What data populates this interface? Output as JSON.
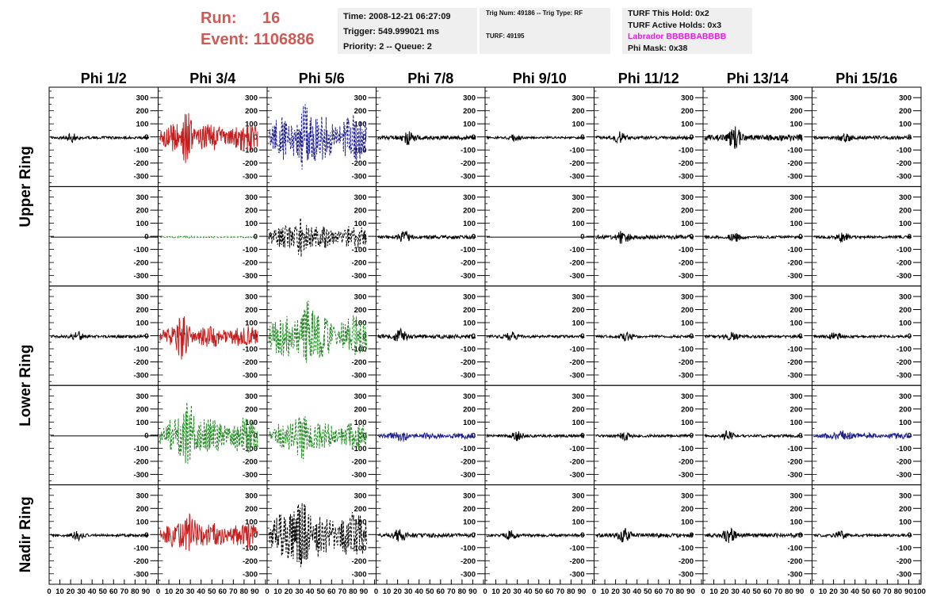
{
  "header": {
    "run_label": "Run:",
    "run_value": "16",
    "event_label": "Event:",
    "event_value": "1106886",
    "time": "Time: 2008-12-21 06:27:09",
    "trigger": "Trigger: 549.999021 ms",
    "priority": "Priority: 2 -- Queue: 2",
    "trig_num": "Trig Num: 49186 -- Trig Type: RF",
    "turf": "TURF: 49195",
    "turf_hold": "TURF This Hold: 0x2",
    "turf_active": "TURF Active Holds: 0x3",
    "labrador": "Labrador BBBBBABBBB",
    "phi_mask": "Phi Mask: 0x38"
  },
  "colors": {
    "run": "#cc5b56",
    "labrador": "#e41be4",
    "red": "#c42020",
    "blue": "#1f1f8f",
    "green": "#1e8a1e",
    "black": "#000000"
  },
  "chart_data": {
    "type": "line",
    "columns": [
      "Phi 1/2",
      "Phi 3/4",
      "Phi 5/6",
      "Phi 7/8",
      "Phi 9/10",
      "Phi 11/12",
      "Phi 13/14",
      "Phi 15/16"
    ],
    "ring_labels": [
      "Upper Ring",
      "Lower Ring",
      "Nadir Ring"
    ],
    "xlim": [
      0,
      100
    ],
    "ylim": [
      -380,
      380
    ],
    "x_ticks": [
      "0",
      "10",
      "20",
      "30",
      "40",
      "50",
      "60",
      "70",
      "80",
      "90",
      "100"
    ],
    "y_ticks": [
      "300",
      "200",
      "100",
      "0",
      "-100",
      "-200",
      "-300"
    ],
    "panels": [
      [
        "black",
        "red",
        "blue-dash",
        "black",
        "black",
        "black",
        "black",
        "black"
      ],
      [
        "flat",
        "green-dash",
        "black-dash",
        "black",
        "flat",
        "black",
        "black",
        "black"
      ],
      [
        "black",
        "red",
        "green-dash",
        "black",
        "black",
        "black",
        "black",
        "black"
      ],
      [
        "flat",
        "green-dash",
        "green-dash",
        "blue",
        "black",
        "black",
        "black",
        "blue"
      ],
      [
        "black",
        "red",
        "black-dash",
        "black",
        "black",
        "black",
        "black",
        "black"
      ]
    ],
    "peak_amplitude": [
      [
        40,
        180,
        300,
        60,
        30,
        50,
        90,
        50
      ],
      [
        0,
        8,
        150,
        50,
        0,
        60,
        40,
        40
      ],
      [
        40,
        140,
        280,
        60,
        40,
        40,
        40,
        40
      ],
      [
        0,
        240,
        190,
        40,
        40,
        40,
        40,
        40
      ],
      [
        40,
        160,
        300,
        60,
        40,
        60,
        60,
        40
      ]
    ]
  }
}
